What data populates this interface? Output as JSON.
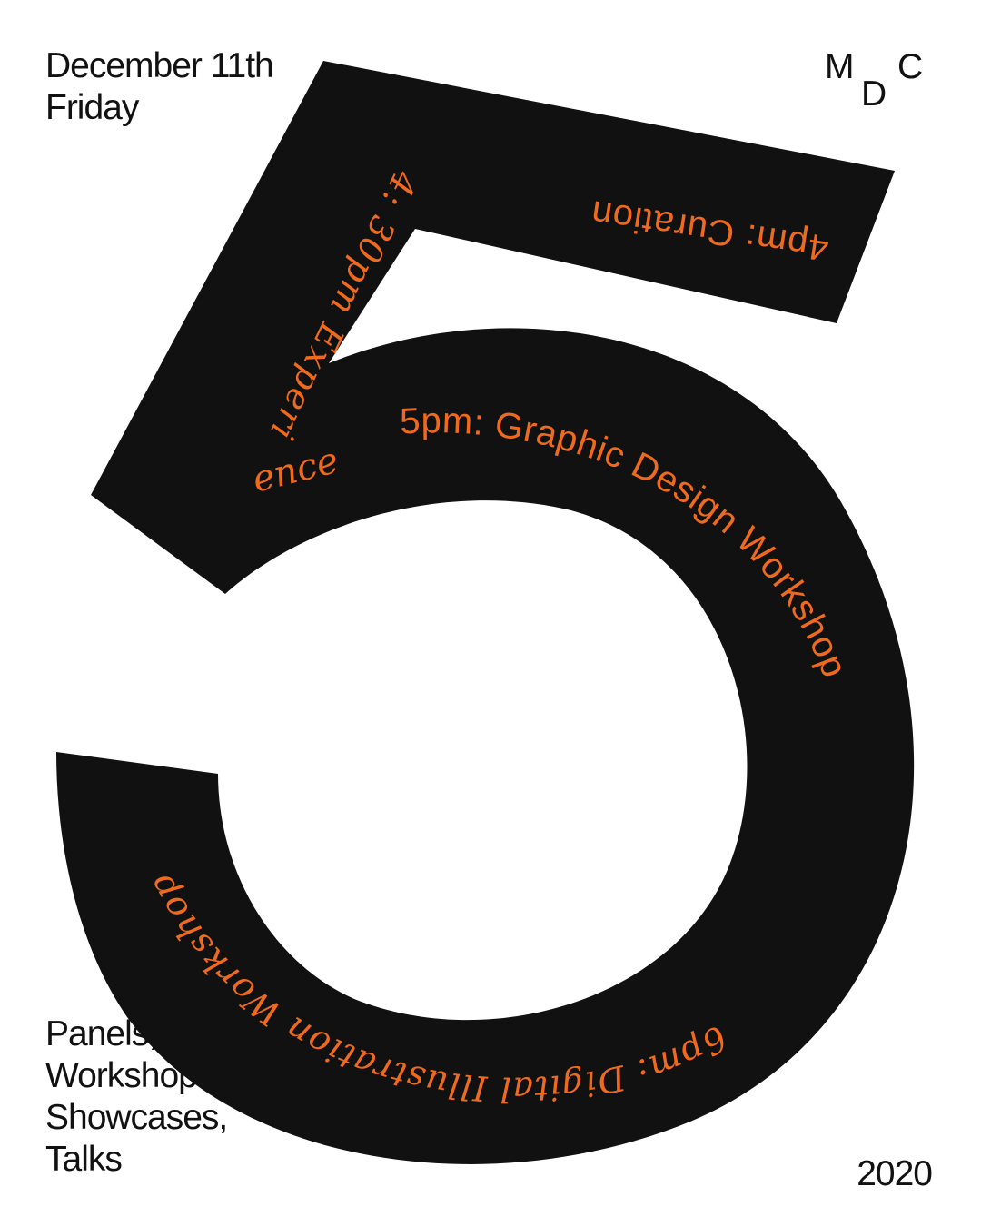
{
  "poster": {
    "date": "December 11th",
    "day": "Friday",
    "logo_letters": [
      "M",
      "D",
      "C"
    ],
    "formats": [
      "Panels,",
      "Workshops,",
      "Showcases,",
      "Talks"
    ],
    "year": "2020",
    "big_numeral": "5"
  },
  "schedule": {
    "curation": "4pm: Curation",
    "experience_part1": "4: 30pm Experi",
    "experience_part2": "ence",
    "graphic_design": "5pm: Graphic Design Workshop",
    "illustration": "6pm: Digital Illustration Workshop"
  },
  "colors": {
    "background": "#ffffff",
    "ink": "#111111",
    "accent": "#ef6a1d"
  }
}
